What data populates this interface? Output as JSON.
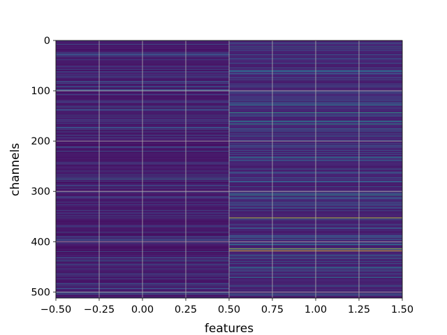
{
  "chart_data": {
    "type": "heatmap",
    "title": "",
    "xlabel": "features",
    "ylabel": "channels",
    "colormap": "viridis",
    "xlim": [
      -0.5,
      1.5
    ],
    "ylim": [
      512,
      0
    ],
    "n_rows": 512,
    "n_cols": 2,
    "grid": true,
    "x_ticks": [
      {
        "value": -0.5,
        "label": "−0.50"
      },
      {
        "value": -0.25,
        "label": "−0.25"
      },
      {
        "value": 0.0,
        "label": "0.00"
      },
      {
        "value": 0.25,
        "label": "0.25"
      },
      {
        "value": 0.5,
        "label": "0.50"
      },
      {
        "value": 0.75,
        "label": "0.75"
      },
      {
        "value": 1.0,
        "label": "1.00"
      },
      {
        "value": 1.25,
        "label": "1.25"
      },
      {
        "value": 1.5,
        "label": "1.50"
      }
    ],
    "y_ticks": [
      {
        "value": 0,
        "label": "0"
      },
      {
        "value": 100,
        "label": "100"
      },
      {
        "value": 200,
        "label": "200"
      },
      {
        "value": 300,
        "label": "300"
      },
      {
        "value": 400,
        "label": "400"
      },
      {
        "value": 500,
        "label": "500"
      }
    ],
    "column_0_background": 0.05,
    "column_1_background": 0.08,
    "highlights": [
      {
        "col": 0,
        "row": 98,
        "value": 0.3
      },
      {
        "col": 0,
        "row": 160,
        "value": 0.25
      },
      {
        "col": 0,
        "row": 220,
        "value": 0.3
      },
      {
        "col": 0,
        "row": 275,
        "value": 0.45
      },
      {
        "col": 0,
        "row": 310,
        "value": 0.25
      },
      {
        "col": 0,
        "row": 438,
        "value": 0.35
      },
      {
        "col": 0,
        "row": 462,
        "value": 0.25
      },
      {
        "col": 1,
        "row": 5,
        "value": 0.35
      },
      {
        "col": 1,
        "row": 12,
        "value": 0.4
      },
      {
        "col": 1,
        "row": 28,
        "value": 0.3
      },
      {
        "col": 1,
        "row": 45,
        "value": 0.3
      },
      {
        "col": 1,
        "row": 60,
        "value": 0.35
      },
      {
        "col": 1,
        "row": 128,
        "value": 0.45
      },
      {
        "col": 1,
        "row": 143,
        "value": 0.6
      },
      {
        "col": 1,
        "row": 160,
        "value": 0.5
      },
      {
        "col": 1,
        "row": 166,
        "value": 0.55
      },
      {
        "col": 1,
        "row": 175,
        "value": 0.35
      },
      {
        "col": 1,
        "row": 205,
        "value": 0.3
      },
      {
        "col": 1,
        "row": 232,
        "value": 0.4
      },
      {
        "col": 1,
        "row": 255,
        "value": 0.35
      },
      {
        "col": 1,
        "row": 272,
        "value": 0.3
      },
      {
        "col": 1,
        "row": 290,
        "value": 0.3
      },
      {
        "col": 1,
        "row": 307,
        "value": 0.55
      },
      {
        "col": 1,
        "row": 327,
        "value": 0.3
      },
      {
        "col": 1,
        "row": 352,
        "value": 0.95
      },
      {
        "col": 1,
        "row": 373,
        "value": 0.35
      },
      {
        "col": 1,
        "row": 405,
        "value": 0.35
      },
      {
        "col": 1,
        "row": 414,
        "value": 0.9
      },
      {
        "col": 1,
        "row": 418,
        "value": 1.0
      },
      {
        "col": 1,
        "row": 433,
        "value": 0.35
      },
      {
        "col": 1,
        "row": 451,
        "value": 0.4
      },
      {
        "col": 1,
        "row": 470,
        "value": 0.35
      },
      {
        "col": 1,
        "row": 488,
        "value": 0.3
      },
      {
        "col": 1,
        "row": 503,
        "value": 0.35
      }
    ]
  }
}
